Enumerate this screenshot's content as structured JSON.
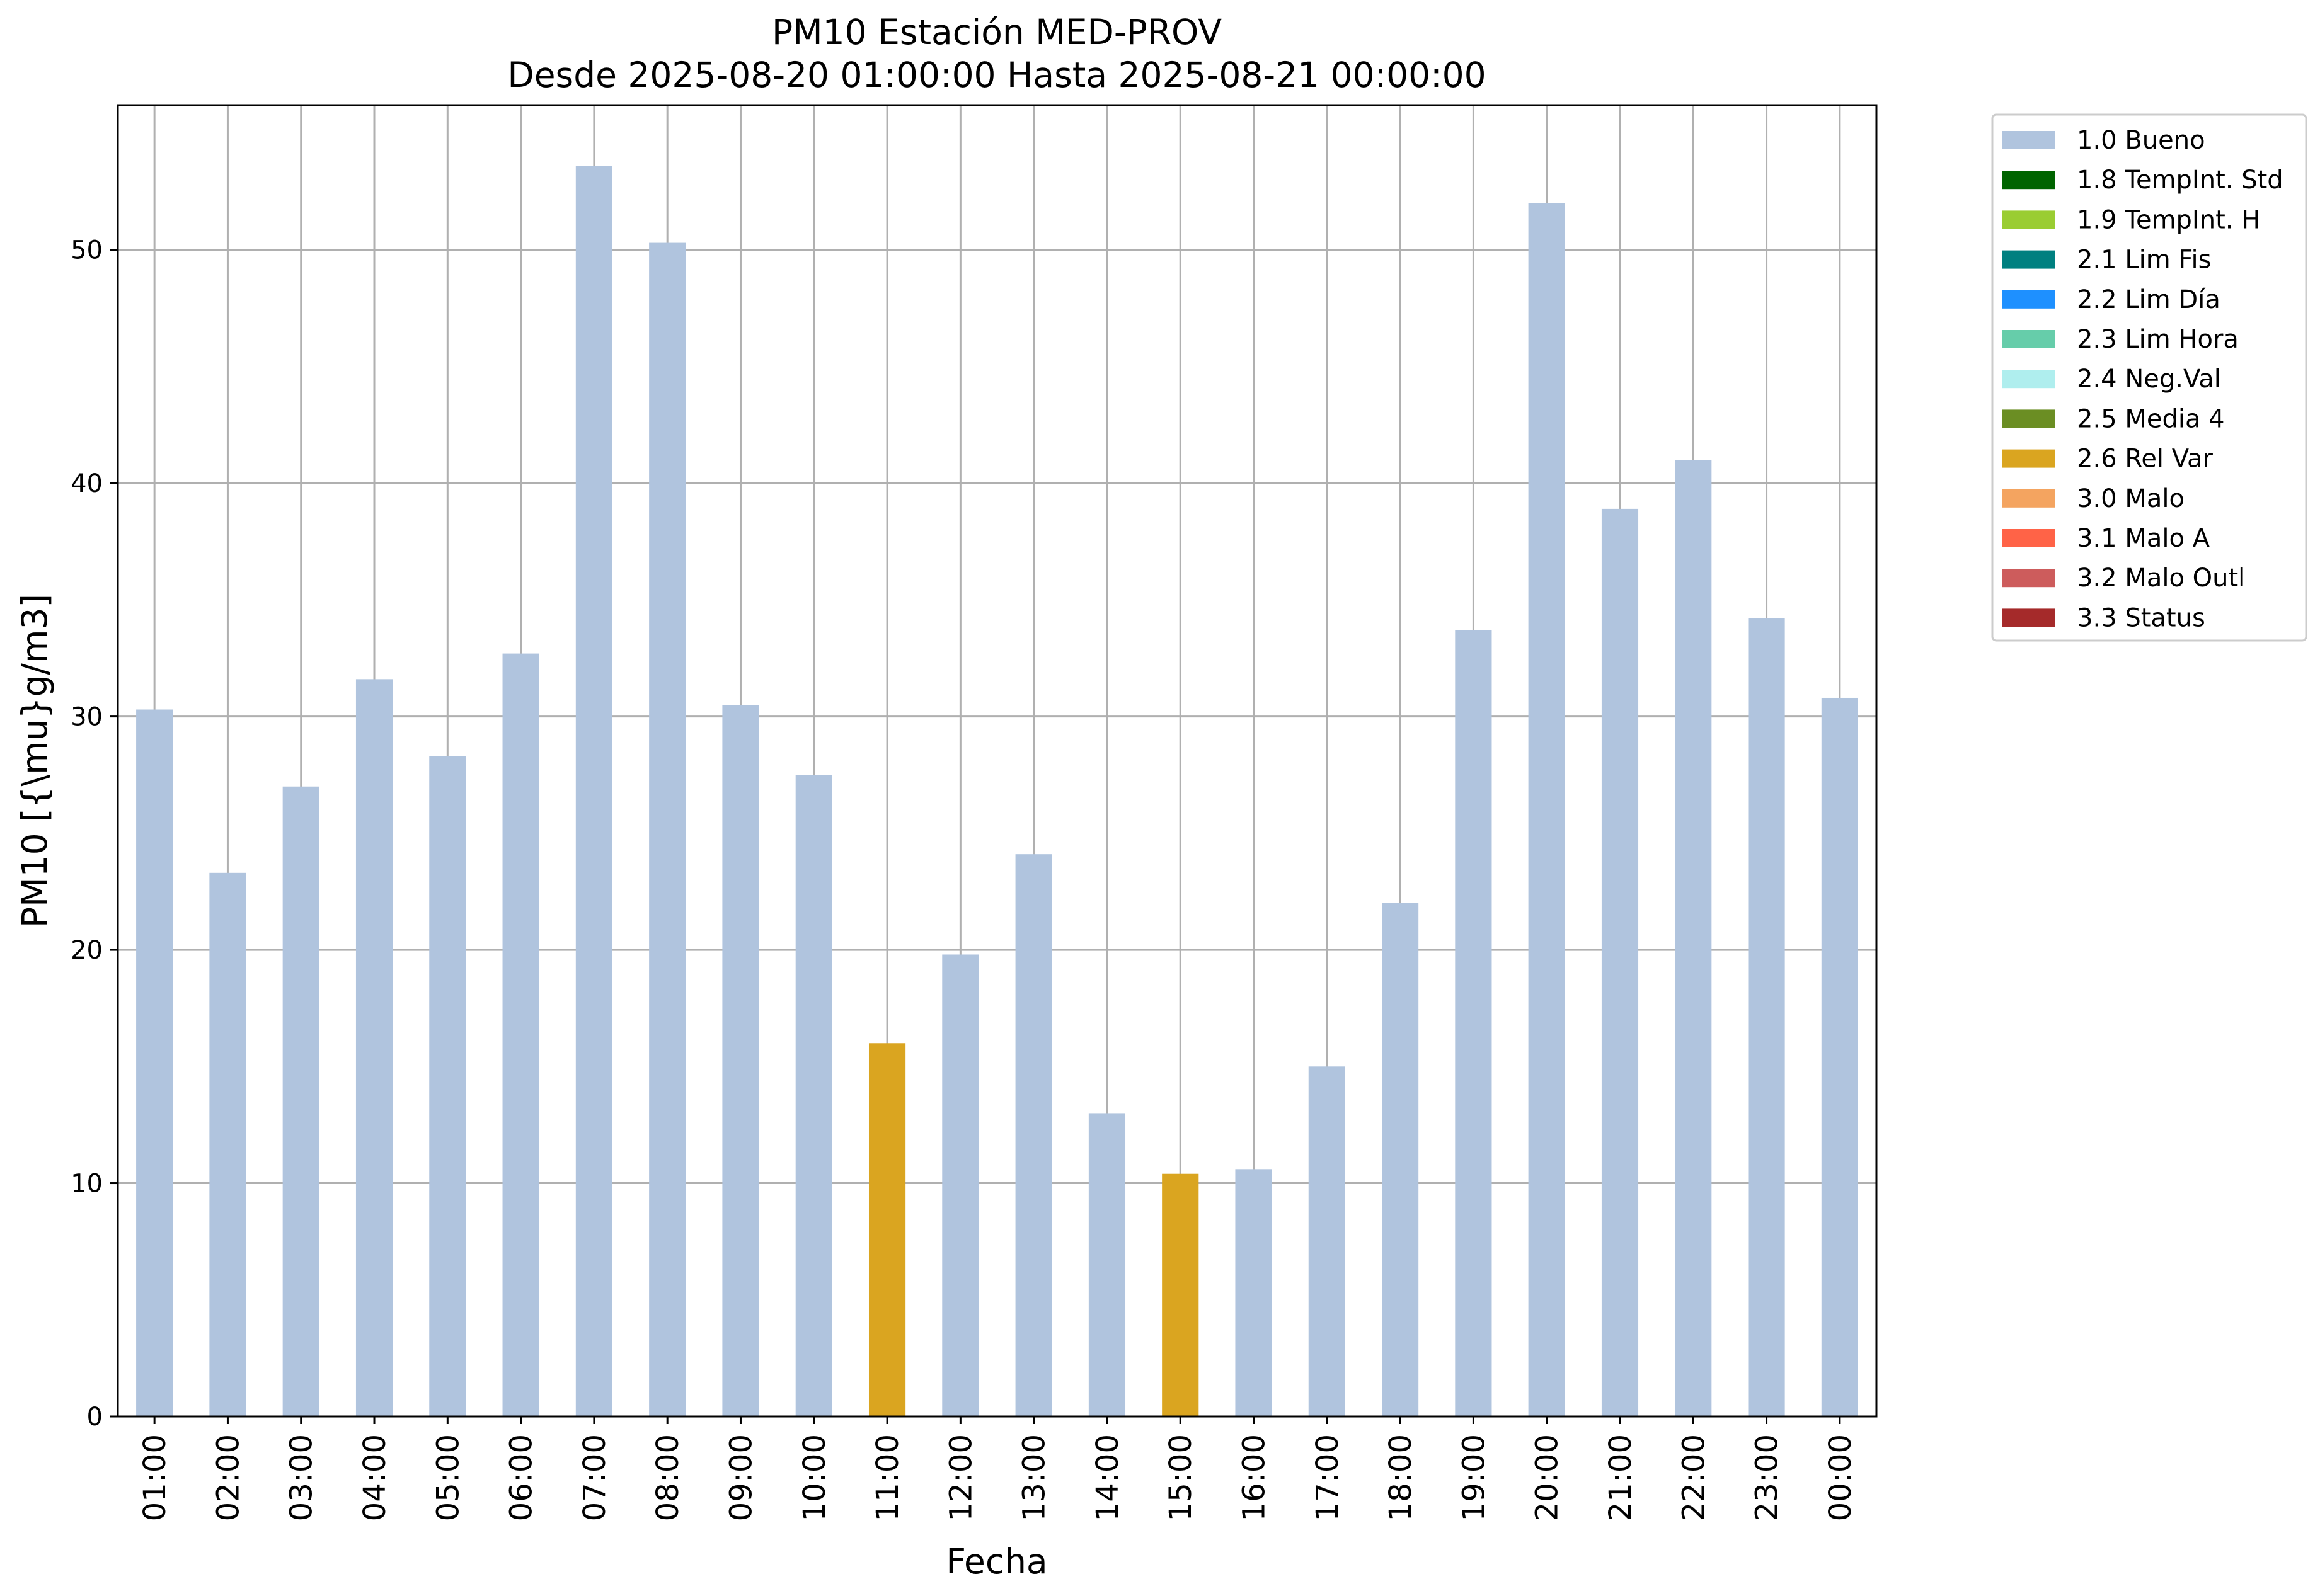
{
  "chart_data": {
    "type": "bar",
    "title": "PM10 Estación MED-PROV",
    "subtitle": "Desde 2025-08-20 01:00:00 Hasta 2025-08-21 00:00:00",
    "xlabel": "Fecha",
    "ylabel": "PM10 [{\\mu}g/m3]",
    "ylim": [
      0,
      56.2
    ],
    "yticks": [
      0,
      10,
      20,
      30,
      40,
      50
    ],
    "grid": true,
    "legend_position": "outside top-right",
    "categories": [
      "01:00",
      "02:00",
      "03:00",
      "04:00",
      "05:00",
      "06:00",
      "07:00",
      "08:00",
      "09:00",
      "10:00",
      "11:00",
      "12:00",
      "13:00",
      "14:00",
      "15:00",
      "16:00",
      "17:00",
      "18:00",
      "19:00",
      "20:00",
      "21:00",
      "22:00",
      "23:00",
      "00:00"
    ],
    "values": [
      30.3,
      23.3,
      27.0,
      31.6,
      28.3,
      32.7,
      53.6,
      50.3,
      30.5,
      27.5,
      16.0,
      19.8,
      24.1,
      13.0,
      10.4,
      10.6,
      15.0,
      22.0,
      33.7,
      52.0,
      38.9,
      41.0,
      34.2,
      30.8
    ],
    "flags": [
      "1.0 Bueno",
      "1.0 Bueno",
      "1.0 Bueno",
      "1.0 Bueno",
      "1.0 Bueno",
      "1.0 Bueno",
      "1.0 Bueno",
      "1.0 Bueno",
      "1.0 Bueno",
      "1.0 Bueno",
      "2.6 Rel Var",
      "1.0 Bueno",
      "1.0 Bueno",
      "1.0 Bueno",
      "2.6 Rel Var",
      "1.0 Bueno",
      "1.0 Bueno",
      "1.0 Bueno",
      "1.0 Bueno",
      "1.0 Bueno",
      "1.0 Bueno",
      "1.0 Bueno",
      "1.0 Bueno",
      "1.0 Bueno"
    ],
    "legend": [
      {
        "label": "1.0 Bueno",
        "color": "#b0c4de"
      },
      {
        "label": "1.8 TempInt. Std",
        "color": "#006400"
      },
      {
        "label": "1.9 TempInt. H",
        "color": "#9acd32"
      },
      {
        "label": "2.1 Lim Fis",
        "color": "#008080"
      },
      {
        "label": "2.2 Lim Día",
        "color": "#1e90ff"
      },
      {
        "label": "2.3 Lim Hora",
        "color": "#66cdaa"
      },
      {
        "label": "2.4 Neg.Val",
        "color": "#afeeee"
      },
      {
        "label": "2.5 Media 4",
        "color": "#6b8e23"
      },
      {
        "label": "2.6 Rel Var",
        "color": "#daa520"
      },
      {
        "label": "3.0 Malo",
        "color": "#f4a460"
      },
      {
        "label": "3.1 Malo A",
        "color": "#ff6347"
      },
      {
        "label": "3.2 Malo Outl",
        "color": "#cd5c5c"
      },
      {
        "label": "3.3 Status",
        "color": "#a52a2a"
      }
    ]
  }
}
